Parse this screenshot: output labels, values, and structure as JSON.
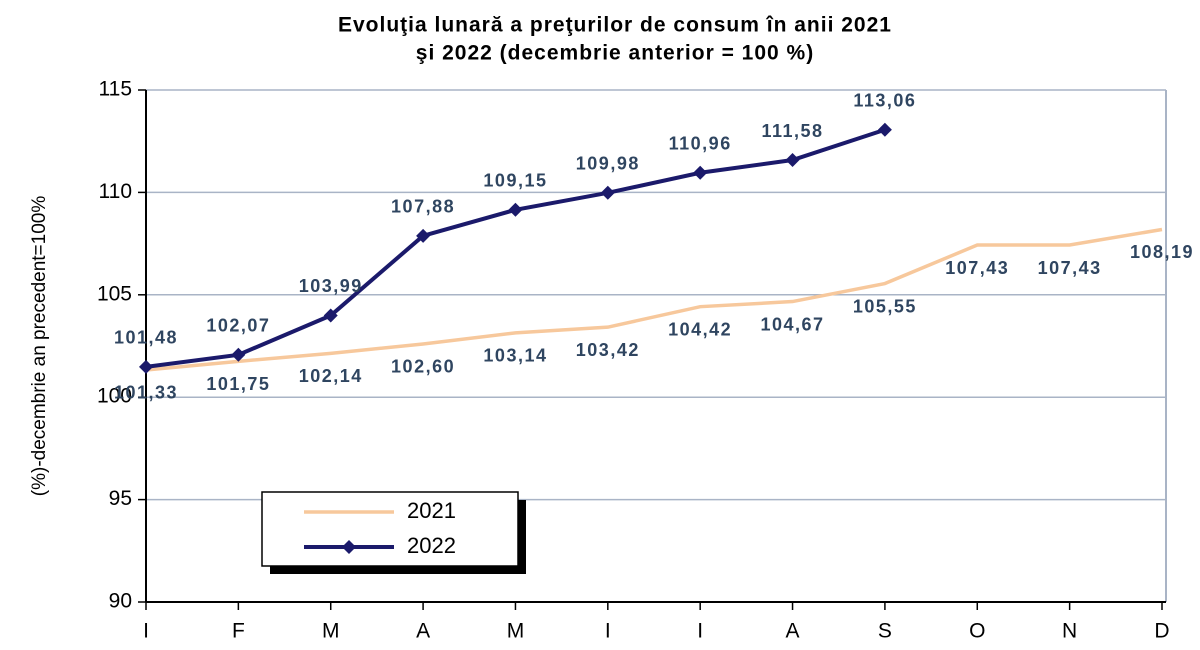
{
  "chart_data": {
    "type": "line",
    "title": [
      "Evoluţia lunară a preţurilor de consum în anii  2021",
      "şi 2022 (decembrie anterior = 100 %)"
    ],
    "y_label": "(%)-decembrie an precedent=100%",
    "categories": [
      "I",
      "F",
      "M",
      "A",
      "M",
      "I",
      "I",
      "A",
      "S",
      "O",
      "N",
      "D"
    ],
    "ylim": [
      90,
      115
    ],
    "yticks": [
      90,
      95,
      100,
      105,
      110,
      115
    ],
    "grid": true,
    "legend": "lower left",
    "series": [
      {
        "name": "2021",
        "color": "#f7c89c",
        "marker": false,
        "values": [
          101.33,
          101.75,
          102.14,
          102.6,
          103.14,
          103.42,
          104.42,
          104.67,
          105.55,
          107.43,
          107.43,
          108.19
        ],
        "value_labels": [
          "101,33",
          "101,75",
          "102,14",
          "102,60",
          "103,14",
          "103,42",
          "104,42",
          "104,67",
          "105,55",
          "107,43",
          "107,43",
          "108,19"
        ]
      },
      {
        "name": "2022",
        "color": "#1b1a6b",
        "marker": true,
        "values": [
          101.48,
          102.07,
          103.99,
          107.88,
          109.15,
          109.98,
          110.96,
          111.58,
          113.06,
          null,
          null,
          null
        ],
        "value_labels": [
          "101,48",
          "102,07",
          "103,99",
          "107,88",
          "109,15",
          "109,98",
          "110,96",
          "111,58",
          "113,06",
          null,
          null,
          null
        ]
      }
    ]
  }
}
